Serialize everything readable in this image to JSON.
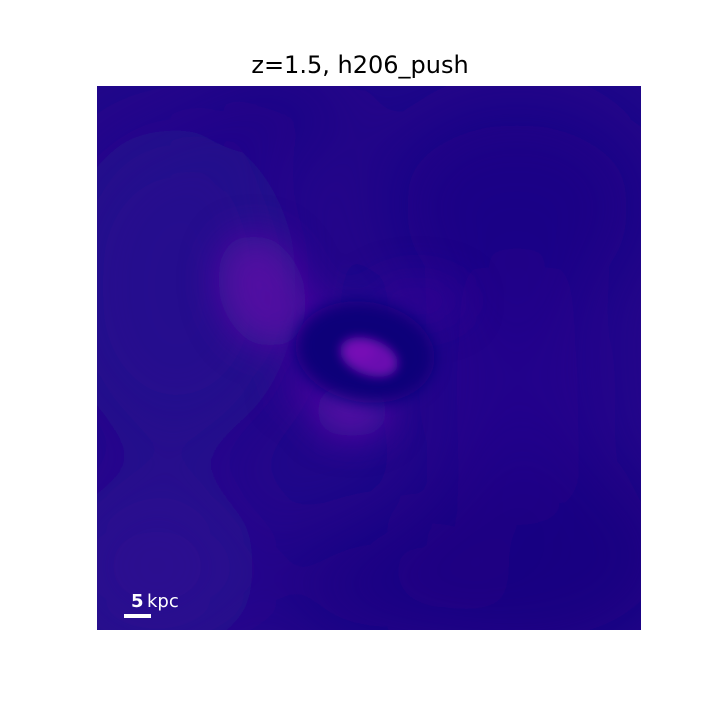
{
  "figure": {
    "title": "z=1.5, h206_push"
  },
  "image": {
    "colormap": [
      "#1a0384",
      "#22078a",
      "#2a0a92",
      "#4a0aa0",
      "#6a0ab0",
      "#11007c"
    ]
  },
  "scalebar": {
    "value": "5",
    "unit": "kpc"
  }
}
